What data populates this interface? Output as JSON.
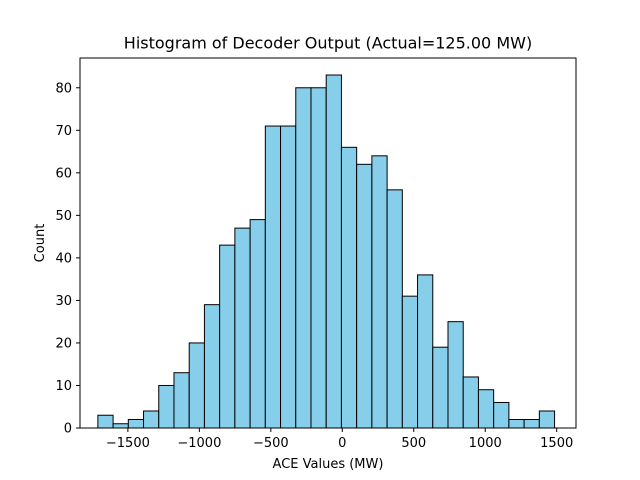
{
  "chart_data": {
    "type": "bar",
    "title": "Histogram of Decoder Output (Actual=125.00 MW)",
    "xlabel": "ACE Values (MW)",
    "ylabel": "Count",
    "xlim": [
      -1835,
      1635
    ],
    "ylim": [
      0,
      87
    ],
    "x_ticks": [
      -1500,
      -1000,
      -500,
      0,
      500,
      1000,
      1500
    ],
    "x_tick_labels": [
      "−1500",
      "−1000",
      "−500",
      "0",
      "500",
      "1000",
      "1500"
    ],
    "y_ticks": [
      0,
      10,
      20,
      30,
      40,
      50,
      60,
      70,
      80
    ],
    "y_tick_labels": [
      "0",
      "10",
      "20",
      "30",
      "40",
      "50",
      "60",
      "70",
      "80"
    ],
    "bin_start": -1710,
    "bin_width": 106.5,
    "values": [
      3,
      1,
      2,
      4,
      10,
      13,
      20,
      29,
      43,
      47,
      49,
      71,
      71,
      80,
      80,
      83,
      66,
      62,
      64,
      56,
      31,
      36,
      19,
      25,
      12,
      9,
      6,
      2,
      2,
      4
    ],
    "bar_color": "#87ceeb",
    "edge_color": "#000000",
    "grid": false
  }
}
